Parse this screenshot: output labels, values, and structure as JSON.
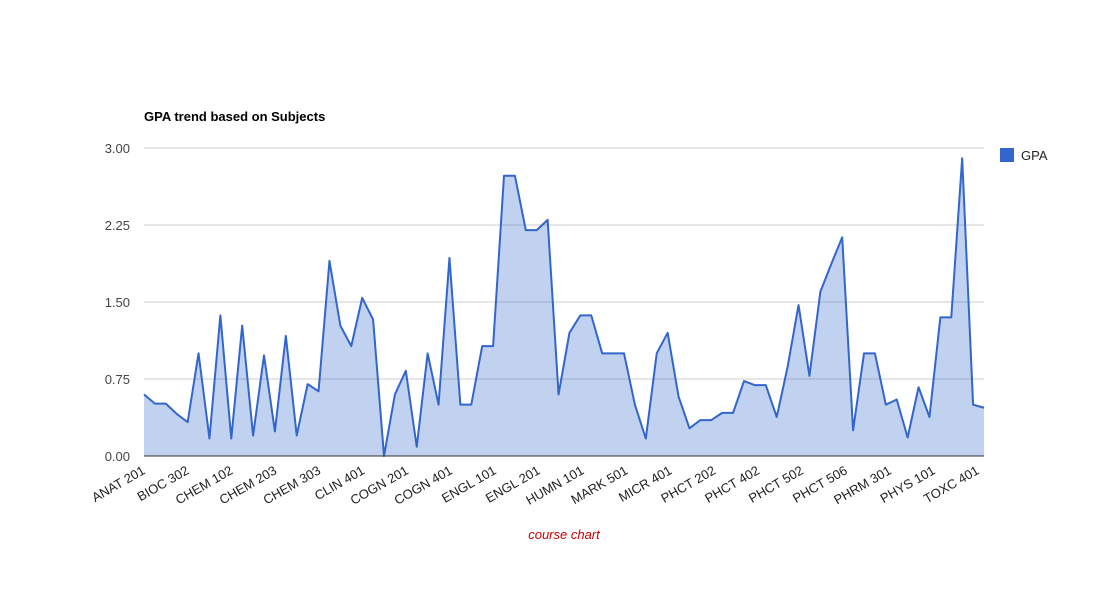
{
  "chart_data": {
    "type": "area",
    "title": "GPA trend based on Subjects",
    "xlabel": "course chart",
    "ylabel": "",
    "ylim": [
      0,
      3
    ],
    "yticks": [
      "0.00",
      "0.75",
      "1.50",
      "2.25",
      "3.00"
    ],
    "grid": true,
    "legend_position": "right",
    "tick_labels": [
      "ANAT 201",
      "BIOC 302",
      "CHEM 102",
      "CHEM 203",
      "CHEM 303",
      "CLIN 401",
      "COGN 201",
      "COGN 401",
      "ENGL 101",
      "ENGL 201",
      "HUMN 101",
      "MARK 501",
      "MICR 401",
      "PHCT 202",
      "PHCT 402",
      "PHCT 502",
      "PHCT 506",
      "PHRM 301",
      "PHYS 101",
      "TOXC 401"
    ],
    "series": [
      {
        "name": "GPA",
        "color": "#3366cc",
        "values": [
          0.6,
          0.51,
          0.51,
          0.41,
          0.33,
          1.0,
          0.17,
          1.37,
          0.17,
          1.27,
          0.2,
          0.98,
          0.24,
          1.17,
          0.2,
          0.7,
          0.63,
          1.9,
          1.27,
          1.07,
          1.54,
          1.33,
          0.0,
          0.6,
          0.83,
          0.09,
          1.0,
          0.5,
          1.93,
          0.5,
          0.5,
          1.07,
          1.07,
          2.73,
          2.73,
          2.2,
          2.2,
          2.3,
          0.6,
          1.2,
          1.37,
          1.37,
          1.0,
          1.0,
          1.0,
          0.5,
          0.17,
          1.0,
          1.2,
          0.58,
          0.27,
          0.35,
          0.35,
          0.42,
          0.42,
          0.73,
          0.69,
          0.69,
          0.38,
          0.87,
          1.47,
          0.78,
          1.6,
          1.87,
          2.13,
          0.25,
          1.0,
          1.0,
          0.5,
          0.55,
          0.18,
          0.67,
          0.38,
          1.35,
          1.35,
          2.9,
          0.5,
          0.47
        ]
      }
    ]
  }
}
